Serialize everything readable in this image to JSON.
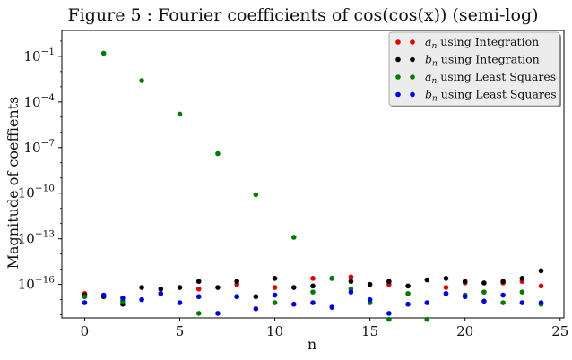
{
  "chart_data": {
    "type": "scatter",
    "title": "Figure 5 : Fourier coefficients of cos(cos(x)) (semi-log)",
    "xlabel": "n",
    "ylabel": "Magnitude of coeffients",
    "xlim": [
      -1.2,
      25.2
    ],
    "ylim_log10": [
      -18.2,
      0.7
    ],
    "yscale": "log",
    "x_ticks": [
      0,
      5,
      10,
      15,
      20,
      25
    ],
    "y_ticks": [
      {
        "exp": -1,
        "label": "10",
        "sup": "−1"
      },
      {
        "exp": -4,
        "label": "10",
        "sup": "−4"
      },
      {
        "exp": -7,
        "label": "10",
        "sup": "−7"
      },
      {
        "exp": -10,
        "label": "10",
        "sup": "−10"
      },
      {
        "exp": -13,
        "label": "10",
        "sup": "−13"
      },
      {
        "exp": -16,
        "label": "10",
        "sup": "−16"
      }
    ],
    "grid": false,
    "legend_position": "top-right",
    "series": [
      {
        "legend_var": "a",
        "legend_sub": "n",
        "legend_text": " using Integration",
        "color": "#e00000",
        "points": [
          [
            0,
            -16.6
          ],
          [
            6,
            -16.3
          ],
          [
            8,
            -16.0
          ],
          [
            10,
            -16.2
          ],
          [
            12,
            -15.6
          ],
          [
            14,
            -15.5
          ],
          [
            16,
            -16.0
          ],
          [
            19,
            -16.2
          ],
          [
            20,
            -15.9
          ],
          [
            21,
            -16.5
          ],
          [
            22,
            -15.9
          ],
          [
            23,
            -15.8
          ],
          [
            24,
            -16.1
          ]
        ]
      },
      {
        "legend_var": "b",
        "legend_sub": "n",
        "legend_text": " using Integration",
        "color": "#000000",
        "points": [
          [
            0,
            -16.7
          ],
          [
            1,
            -16.8
          ],
          [
            2,
            -17.3
          ],
          [
            3,
            -16.2
          ],
          [
            4,
            -16.3
          ],
          [
            5,
            -16.2
          ],
          [
            6,
            -15.8
          ],
          [
            7,
            -16.2
          ],
          [
            8,
            -15.8
          ],
          [
            9,
            -16.8
          ],
          [
            10,
            -15.6
          ],
          [
            11,
            -16.2
          ],
          [
            12,
            -16.1
          ],
          [
            13,
            -15.6
          ],
          [
            14,
            -15.8
          ],
          [
            15,
            -16.0
          ],
          [
            16,
            -15.8
          ],
          [
            17,
            -16.1
          ],
          [
            18,
            -15.7
          ],
          [
            19,
            -15.6
          ],
          [
            20,
            -15.8
          ],
          [
            21,
            -15.9
          ],
          [
            22,
            -15.8
          ],
          [
            23,
            -15.6
          ],
          [
            24,
            -15.1
          ]
        ]
      },
      {
        "legend_var": "a",
        "legend_sub": "n",
        "legend_text": " using Least Squares",
        "color": "#007a00",
        "points": [
          [
            0,
            -16.8
          ],
          [
            1,
            -0.8
          ],
          [
            2,
            -17.1
          ],
          [
            3,
            -2.6
          ],
          [
            4,
            -16.6
          ],
          [
            5,
            -4.8
          ],
          [
            6,
            -17.9
          ],
          [
            7,
            -7.4
          ],
          [
            8,
            -16.8
          ],
          [
            9,
            -10.1
          ],
          [
            10,
            -17.2
          ],
          [
            11,
            -12.9
          ],
          [
            12,
            -16.5
          ],
          [
            13,
            -15.6
          ],
          [
            14,
            -16.3
          ],
          [
            15,
            -17.2
          ],
          [
            16,
            -18.3
          ],
          [
            17,
            -16.6
          ],
          [
            18,
            -18.3
          ],
          [
            19,
            -16.6
          ],
          [
            20,
            -16.7
          ],
          [
            21,
            -16.5
          ],
          [
            22,
            -17.2
          ],
          [
            23,
            -16.5
          ],
          [
            24,
            -17.3
          ]
        ]
      },
      {
        "legend_var": "b",
        "legend_sub": "n",
        "legend_text": " using Least Squares",
        "color": "#0000e0",
        "points": [
          [
            0,
            -17.2
          ],
          [
            1,
            -16.7
          ],
          [
            2,
            -16.9
          ],
          [
            3,
            -17.0
          ],
          [
            4,
            -16.6
          ],
          [
            5,
            -17.2
          ],
          [
            6,
            -16.8
          ],
          [
            7,
            -17.9
          ],
          [
            8,
            -16.8
          ],
          [
            9,
            -17.6
          ],
          [
            10,
            -16.7
          ],
          [
            11,
            -17.3
          ],
          [
            12,
            -17.2
          ],
          [
            13,
            -17.5
          ],
          [
            14,
            -16.5
          ],
          [
            15,
            -17.0
          ],
          [
            16,
            -17.9
          ],
          [
            17,
            -17.3
          ],
          [
            18,
            -17.2
          ],
          [
            19,
            -16.6
          ],
          [
            20,
            -16.8
          ],
          [
            21,
            -17.1
          ],
          [
            22,
            -16.7
          ],
          [
            23,
            -17.2
          ],
          [
            24,
            -17.2
          ]
        ]
      }
    ]
  }
}
